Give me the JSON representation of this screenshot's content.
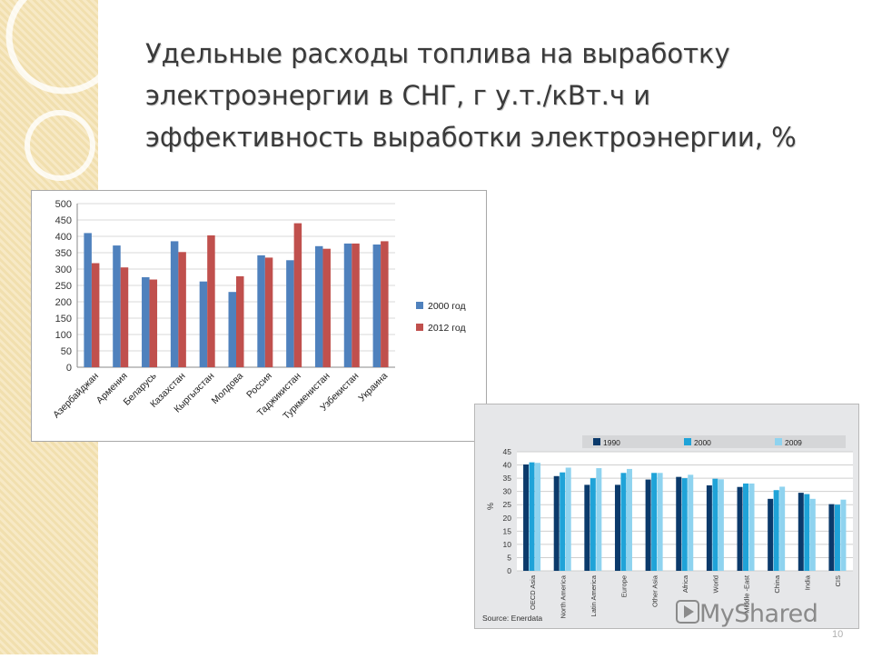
{
  "slide": {
    "title": "Удельные расходы топлива на выработку электроэнергии в СНГ, г у.т./кВт.ч и эффективность выработки электроэнергии, %",
    "page_number": "10",
    "watermark": "MyShared",
    "watermark_icon": "play-icon"
  },
  "colors": {
    "background": "#ffffff",
    "side_strip": "#f3e3b7",
    "title": "#3a3a3a"
  },
  "chart_data": [
    {
      "type": "bar",
      "categories": [
        "Азербайджан",
        "Армения",
        "Беларусь",
        "Казахстан",
        "Кыргызстан",
        "Молдова",
        "Россия",
        "Таджикистан",
        "Туркменистан",
        "Узбекистан",
        "Украина"
      ],
      "series": [
        {
          "name": "2000 год",
          "color": "#4f81bd",
          "values": [
            410,
            372,
            275,
            385,
            262,
            230,
            342,
            327,
            370,
            378,
            375
          ]
        },
        {
          "name": "2012 год",
          "color": "#c0504d",
          "values": [
            318,
            305,
            268,
            352,
            403,
            278,
            335,
            440,
            362,
            378,
            385
          ]
        }
      ],
      "ylim": [
        0,
        500
      ],
      "yticks": [
        0,
        50,
        100,
        150,
        200,
        250,
        300,
        350,
        400,
        450,
        500
      ],
      "grid": true,
      "legend_position": "right"
    },
    {
      "type": "bar",
      "categories": [
        "OECD Asia",
        "North America",
        "Latin America",
        "Europe",
        "Other Asia",
        "Africa",
        "World",
        "Middle -East",
        "China",
        "India",
        "CIS"
      ],
      "series": [
        {
          "name": "1990",
          "color": "#0b3a6b",
          "values": [
            40.2,
            35.8,
            32.5,
            32.5,
            34.5,
            35.5,
            32.3,
            31.7,
            27.2,
            29.5,
            25.2
          ]
        },
        {
          "name": "2000",
          "color": "#1fa3d8",
          "values": [
            41.0,
            37.2,
            35.0,
            37.0,
            37.0,
            35.0,
            34.8,
            33.0,
            30.5,
            29.0,
            25.0
          ]
        },
        {
          "name": "2009",
          "color": "#8fd3ef",
          "values": [
            40.8,
            39.0,
            38.8,
            38.5,
            37.0,
            36.3,
            34.6,
            33.0,
            31.8,
            27.2,
            26.9
          ]
        }
      ],
      "ylabel": "%",
      "ylim": [
        0,
        45
      ],
      "yticks": [
        0,
        5,
        10,
        15,
        20,
        25,
        30,
        35,
        40,
        45
      ],
      "grid": true,
      "legend_position": "top",
      "source": "Source: Enerdata"
    }
  ]
}
